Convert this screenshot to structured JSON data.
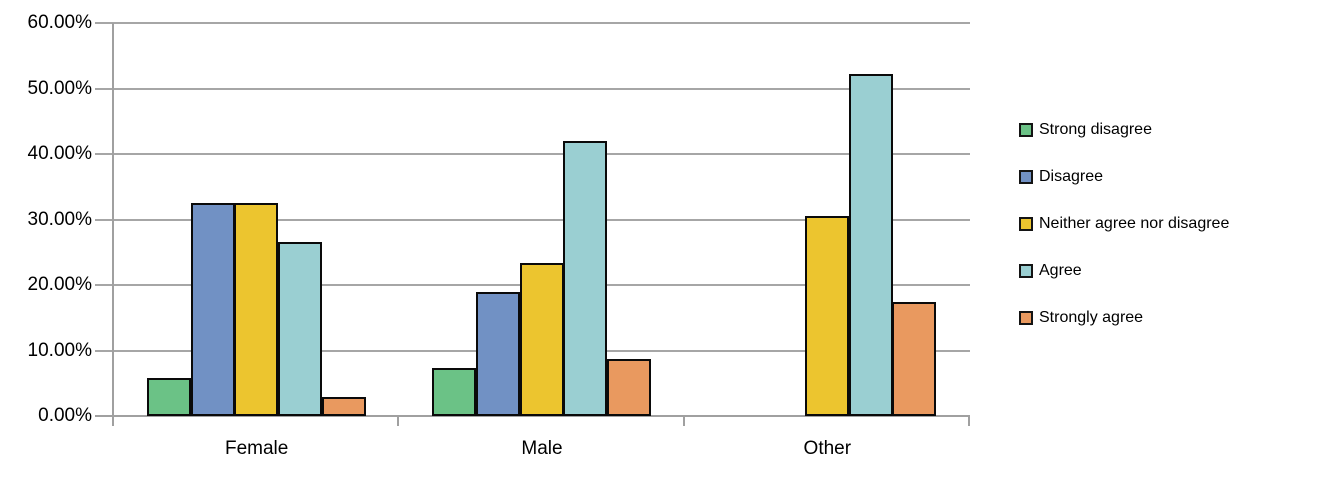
{
  "chart_data": {
    "type": "bar",
    "title": "",
    "xlabel": "",
    "ylabel": "",
    "categories": [
      "Female",
      "Male",
      "Other"
    ],
    "series": [
      {
        "name": "Strong disagree",
        "color": "#6BC286",
        "values": [
          5.8,
          7.4,
          0
        ]
      },
      {
        "name": "Disagree",
        "color": "#7191C4",
        "values": [
          32.5,
          18.9,
          0
        ]
      },
      {
        "name": "Neither agree nor disagree",
        "color": "#ECC52F",
        "values": [
          32.5,
          23.3,
          30.6
        ]
      },
      {
        "name": "Agree",
        "color": "#9ACFD2",
        "values": [
          26.5,
          42.0,
          52.2
        ]
      },
      {
        "name": "Strongly agree",
        "color": "#E9995F",
        "values": [
          2.9,
          8.7,
          17.4
        ]
      }
    ],
    "y_axis": {
      "min": 0,
      "max": 60,
      "step": 10,
      "tick_labels": [
        "0.00%",
        "10.00%",
        "20.00%",
        "30.00%",
        "40.00%",
        "50.00%",
        "60.00%"
      ]
    },
    "legend_position": "right",
    "grid": true,
    "bar_border_color": "#0a0a0a",
    "gridline_color": "#A6A6A6",
    "axis_color": "#A0A0A0",
    "text_color": "#000000"
  }
}
